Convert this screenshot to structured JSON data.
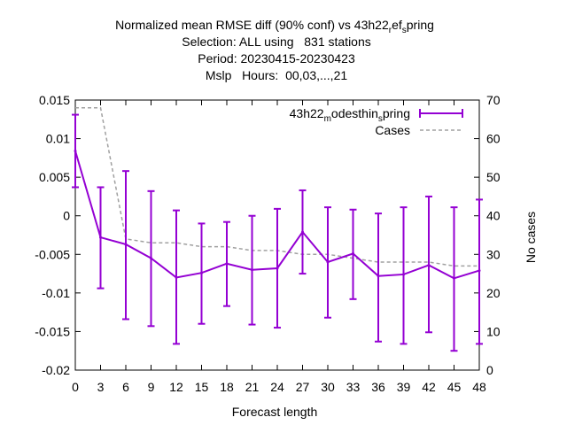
{
  "chart_data": {
    "type": "line",
    "title": [
      "Normalized mean RMSE diff (90% conf) vs 43h22_ref_spring",
      "Selection: ALL using   831 stations",
      "Period: 20230415-20230423",
      "Mslp   Hours:  00,03,...,21"
    ],
    "xlabel": "Forecast length",
    "ylabel_right": "No cases",
    "x": [
      0,
      3,
      6,
      9,
      12,
      15,
      18,
      21,
      24,
      27,
      30,
      33,
      36,
      39,
      42,
      45,
      48
    ],
    "xlim": [
      0,
      48
    ],
    "ylim": [
      -0.02,
      0.015
    ],
    "ylim_right": [
      0,
      70
    ],
    "yticks": [
      "0.015",
      "0.01",
      "0.005",
      "0",
      "-0.005",
      "-0.01",
      "-0.015",
      "-0.02"
    ],
    "yticks_right": [
      "70",
      "60",
      "50",
      "40",
      "30",
      "20",
      "10",
      "0"
    ],
    "legend_position": "top-right",
    "series": [
      {
        "name": "43h22_modesthin_spring",
        "color": "#9400d3",
        "values": [
          0.0084,
          -0.0028,
          -0.0037,
          -0.0055,
          -0.008,
          -0.0074,
          -0.0062,
          -0.007,
          -0.0068,
          -0.0021,
          -0.006,
          -0.0049,
          -0.0078,
          -0.0076,
          -0.0064,
          -0.0081,
          -0.0071
        ],
        "err_low": [
          0.0037,
          -0.0094,
          -0.0134,
          -0.0143,
          -0.0166,
          -0.014,
          -0.0117,
          -0.0141,
          -0.0145,
          -0.0075,
          -0.0132,
          -0.0108,
          -0.0163,
          -0.0166,
          -0.0151,
          -0.0175,
          -0.0166
        ],
        "err_high": [
          0.0131,
          0.0037,
          0.0058,
          0.0032,
          0.0007,
          -0.001,
          -0.0008,
          0.0,
          0.0009,
          0.0033,
          0.0011,
          0.0008,
          0.0003,
          0.0011,
          0.0025,
          0.0011,
          0.0021
        ]
      },
      {
        "name": "Cases",
        "axis": "right",
        "color": "#a0a0a0",
        "values": [
          68,
          68,
          34,
          33,
          33,
          32,
          32,
          31,
          31,
          30,
          30,
          29,
          28,
          28,
          28,
          27,
          27
        ]
      }
    ]
  }
}
